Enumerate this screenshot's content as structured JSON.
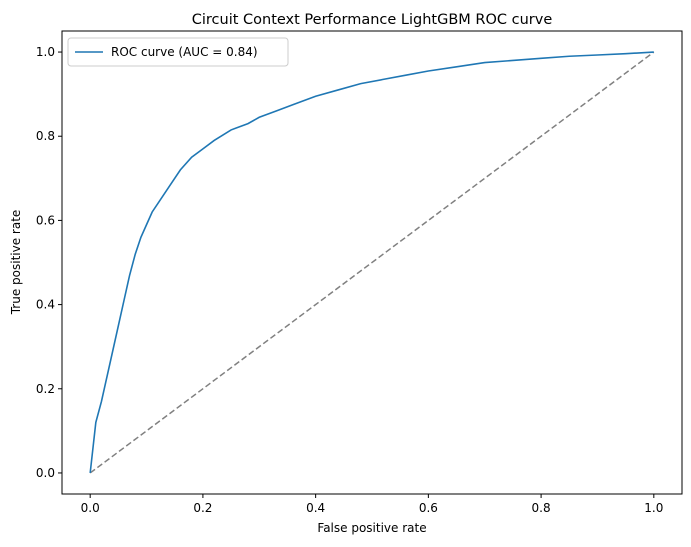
{
  "chart_data": {
    "type": "line",
    "title": "Circuit Context Performance LightGBM ROC curve",
    "xlabel": "False positive rate",
    "ylabel": "True positive rate",
    "xlim": [
      -0.05,
      1.05
    ],
    "ylim": [
      -0.05,
      1.05
    ],
    "xticks": [
      "0.0",
      "0.2",
      "0.4",
      "0.6",
      "0.8",
      "1.0"
    ],
    "yticks": [
      "0.0",
      "0.2",
      "0.4",
      "0.6",
      "0.8",
      "1.0"
    ],
    "grid": false,
    "legend": {
      "position": "upper-left",
      "entries": [
        "ROC curve (AUC = 0.84)"
      ]
    },
    "series": [
      {
        "name": "ROC curve (AUC = 0.84)",
        "color": "#1f77b4",
        "style": "solid",
        "x": [
          0.0,
          0.005,
          0.01,
          0.02,
          0.03,
          0.04,
          0.05,
          0.06,
          0.07,
          0.08,
          0.09,
          0.1,
          0.11,
          0.12,
          0.14,
          0.16,
          0.18,
          0.2,
          0.22,
          0.25,
          0.28,
          0.3,
          0.33,
          0.36,
          0.4,
          0.44,
          0.48,
          0.52,
          0.56,
          0.6,
          0.65,
          0.7,
          0.75,
          0.8,
          0.85,
          0.9,
          0.95,
          1.0
        ],
        "y": [
          0.0,
          0.06,
          0.12,
          0.17,
          0.23,
          0.29,
          0.35,
          0.41,
          0.47,
          0.52,
          0.56,
          0.59,
          0.62,
          0.64,
          0.68,
          0.72,
          0.75,
          0.77,
          0.79,
          0.815,
          0.83,
          0.845,
          0.86,
          0.875,
          0.895,
          0.91,
          0.925,
          0.935,
          0.945,
          0.955,
          0.965,
          0.975,
          0.98,
          0.985,
          0.99,
          0.993,
          0.996,
          1.0
        ]
      },
      {
        "name": "",
        "color": "#808080",
        "style": "dashed",
        "x": [
          0.0,
          1.0
        ],
        "y": [
          0.0,
          1.0
        ]
      }
    ]
  }
}
